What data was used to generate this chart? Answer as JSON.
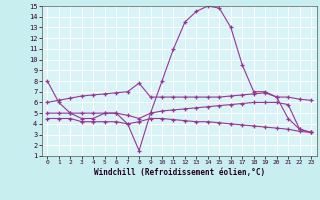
{
  "xlabel": "Windchill (Refroidissement éolien,°C)",
  "xlim": [
    -0.5,
    23.5
  ],
  "ylim": [
    1,
    15
  ],
  "xticks": [
    0,
    1,
    2,
    3,
    4,
    5,
    6,
    7,
    8,
    9,
    10,
    11,
    12,
    13,
    14,
    15,
    16,
    17,
    18,
    19,
    20,
    21,
    22,
    23
  ],
  "yticks": [
    1,
    2,
    3,
    4,
    5,
    6,
    7,
    8,
    9,
    10,
    11,
    12,
    13,
    14,
    15
  ],
  "bg_color": "#c8eef0",
  "plot_bg": "#d8f4f6",
  "grid_color": "#ffffff",
  "line_color": "#993399",
  "lines": [
    {
      "x": [
        0,
        1,
        2,
        3,
        4,
        5,
        6,
        7,
        8,
        9,
        10,
        11,
        12,
        13,
        14,
        15,
        16,
        17,
        18,
        19,
        20,
        21,
        22,
        23
      ],
      "y": [
        8,
        6,
        5,
        4.5,
        4.5,
        5,
        5,
        4,
        1.5,
        5,
        8,
        11,
        13.5,
        14.5,
        15,
        14.8,
        13,
        9.5,
        7,
        7,
        6.5,
        4.5,
        3.5,
        3.2
      ]
    },
    {
      "x": [
        0,
        1,
        2,
        3,
        4,
        5,
        6,
        7,
        8,
        9,
        10,
        11,
        12,
        13,
        14,
        15,
        16,
        17,
        18,
        19,
        20,
        21,
        22,
        23
      ],
      "y": [
        6.0,
        6.2,
        6.4,
        6.6,
        6.7,
        6.8,
        6.9,
        7.0,
        7.8,
        6.5,
        6.5,
        6.5,
        6.5,
        6.5,
        6.5,
        6.5,
        6.6,
        6.7,
        6.8,
        6.9,
        6.5,
        6.5,
        6.3,
        6.2
      ]
    },
    {
      "x": [
        0,
        1,
        2,
        3,
        4,
        5,
        6,
        7,
        8,
        9,
        10,
        11,
        12,
        13,
        14,
        15,
        16,
        17,
        18,
        19,
        20,
        21,
        22,
        23
      ],
      "y": [
        5.0,
        5.0,
        5.0,
        5.0,
        5.0,
        5.0,
        5.0,
        4.8,
        4.5,
        5.0,
        5.2,
        5.3,
        5.4,
        5.5,
        5.6,
        5.7,
        5.8,
        5.9,
        6.0,
        6.0,
        6.0,
        5.8,
        3.5,
        3.2
      ]
    },
    {
      "x": [
        0,
        1,
        2,
        3,
        4,
        5,
        6,
        7,
        8,
        9,
        10,
        11,
        12,
        13,
        14,
        15,
        16,
        17,
        18,
        19,
        20,
        21,
        22,
        23
      ],
      "y": [
        4.5,
        4.5,
        4.5,
        4.2,
        4.2,
        4.2,
        4.2,
        4.0,
        4.2,
        4.5,
        4.5,
        4.4,
        4.3,
        4.2,
        4.2,
        4.1,
        4.0,
        3.9,
        3.8,
        3.7,
        3.6,
        3.5,
        3.3,
        3.2
      ]
    }
  ]
}
